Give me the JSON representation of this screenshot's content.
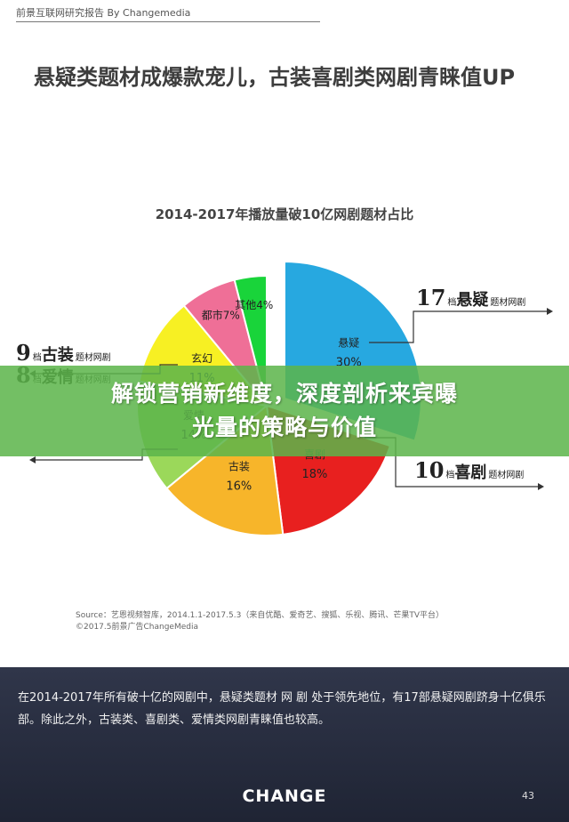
{
  "header": {
    "text": "前景互联网研究报告 By Changemedia"
  },
  "slide_title": "悬疑类题材成爆款宠儿，古装喜剧类网剧青睐值UP",
  "chart_data": {
    "type": "pie",
    "title": "2014-2017年播放量破10亿网剧题材占比",
    "slices": [
      {
        "name": "悬疑",
        "value": 30,
        "label": "30%",
        "color": "#27a8e0"
      },
      {
        "name": "喜剧",
        "value": 18,
        "label": "18%",
        "color": "#e8201f"
      },
      {
        "name": "古装",
        "value": 16,
        "label": "16%",
        "color": "#f7b52a"
      },
      {
        "name": "爱情",
        "value": 14,
        "label": "14%",
        "color": "#9bd85a"
      },
      {
        "name": "玄幻",
        "value": 11,
        "label": "11%",
        "color": "#f7f023"
      },
      {
        "name": "都市",
        "value": 7,
        "label": "7%",
        "color": "#ef6f97"
      },
      {
        "name": "其他",
        "value": 4,
        "label": "4%",
        "color": "#19d43a"
      }
    ],
    "callouts": [
      {
        "big": "17",
        "small": "档",
        "genre": "悬疑",
        "suffix": "题材网剧"
      },
      {
        "big": "10",
        "small": "档",
        "genre": "喜剧",
        "suffix": "题材网剧"
      },
      {
        "big": "9",
        "small": "档",
        "genre": "古装",
        "suffix": "题材网剧"
      },
      {
        "big": "8",
        "small": "档",
        "genre": "爱情",
        "suffix": "题材网剧"
      }
    ]
  },
  "source": {
    "line1": "Source：艺恩视频智库，2014.1.1-2017.5.3（来自优酷、爱奇艺、搜狐、乐视、腾讯、芒果TV平台）",
    "line2": "©2017.5前景广告ChangeMedia"
  },
  "banner": {
    "line1": "解锁营销新维度，深度剖析来宾曝",
    "line2": "光量的策略与价值"
  },
  "footer": {
    "text": "在2014-2017年所有破十亿的网剧中，悬疑类题材 网 剧 处于领先地位，有17部悬疑网剧跻身十亿俱乐部。除此之外，古装类、喜剧类、爱情类网剧青睐值也较高。",
    "logo": "CHANGE",
    "page": "43"
  }
}
